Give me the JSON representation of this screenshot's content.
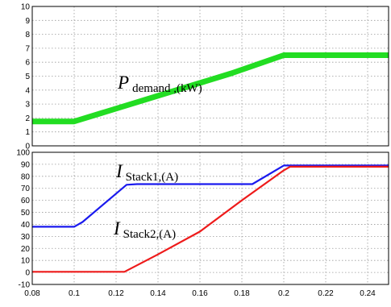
{
  "chart_data": [
    {
      "type": "line",
      "title": "",
      "xlabel": "",
      "ylabel": "",
      "xlim": [
        0.08,
        0.25
      ],
      "ylim": [
        0,
        10
      ],
      "yticks": [
        "0",
        "1",
        "2",
        "3",
        "4",
        "5",
        "6",
        "7",
        "8",
        "9",
        "10"
      ],
      "grid": true,
      "annotation": {
        "main": "P",
        "sub": "demand ,(kW)"
      },
      "series": [
        {
          "name": "",
          "color": "#22dd22",
          "x": [
            0.08,
            0.1,
            0.125,
            0.15,
            0.175,
            0.2,
            0.25
          ],
          "y": [
            1.75,
            1.75,
            2.9,
            4.05,
            5.2,
            6.5,
            6.5
          ]
        }
      ]
    },
    {
      "type": "line",
      "title": "",
      "xlabel": "",
      "ylabel": "",
      "xlim": [
        0.08,
        0.25
      ],
      "ylim": [
        -10,
        100
      ],
      "yticks": [
        "-10",
        "0",
        "10",
        "20",
        "30",
        "40",
        "50",
        "60",
        "70",
        "80",
        "90",
        "100"
      ],
      "xticks": [
        "0.08",
        "0.1",
        "0.12",
        "0.14",
        "0.16",
        "0.18",
        "0.2",
        "0.22",
        "0.24"
      ],
      "grid": true,
      "annotations": [
        {
          "main": "I",
          "sub": "Stack1,(A)"
        },
        {
          "main": "I",
          "sub": "Stack2,(A)"
        }
      ],
      "series": [
        {
          "name": "",
          "color": "#1a1aee",
          "x": [
            0.08,
            0.1,
            0.104,
            0.125,
            0.13,
            0.185,
            0.2,
            0.25
          ],
          "y": [
            38,
            38,
            42,
            73,
            73.5,
            73.5,
            89,
            89
          ]
        },
        {
          "name": "",
          "color": "#ee1a1a",
          "x": [
            0.08,
            0.1,
            0.124,
            0.14,
            0.16,
            0.18,
            0.2,
            0.203,
            0.25
          ],
          "y": [
            0.5,
            0.5,
            0.5,
            15,
            34,
            60,
            85,
            88,
            88
          ]
        }
      ]
    }
  ]
}
